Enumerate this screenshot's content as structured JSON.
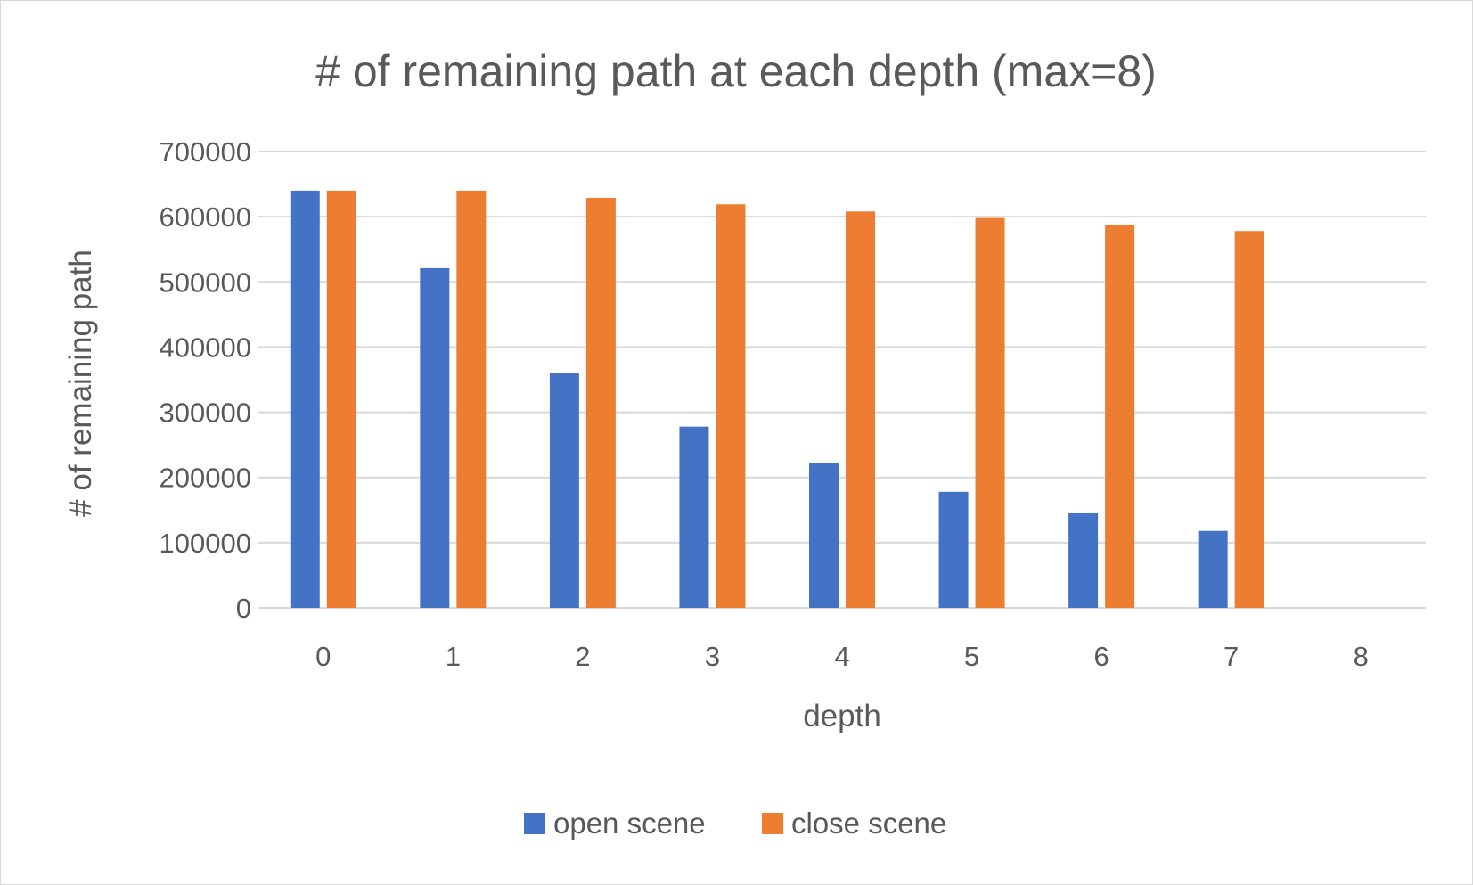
{
  "chart_data": {
    "type": "bar",
    "title": "# of remaining path at each depth (max=8)",
    "xlabel": "depth",
    "ylabel": "# of remaining path",
    "categories": [
      "0",
      "1",
      "2",
      "3",
      "4",
      "5",
      "6",
      "7",
      "8"
    ],
    "series": [
      {
        "name": "open scene",
        "color": "#4472C4",
        "values": [
          640000,
          521000,
          360000,
          278000,
          222000,
          178000,
          145000,
          118000,
          null
        ]
      },
      {
        "name": "close scene",
        "color": "#ED7D31",
        "values": [
          640000,
          640000,
          629000,
          619000,
          608000,
          598000,
          588000,
          578000,
          null
        ]
      }
    ],
    "ylim": [
      0,
      700000
    ],
    "yticks": [
      "0",
      "100000",
      "200000",
      "300000",
      "400000",
      "500000",
      "600000",
      "700000"
    ],
    "grid": true,
    "legend_position": "bottom"
  }
}
